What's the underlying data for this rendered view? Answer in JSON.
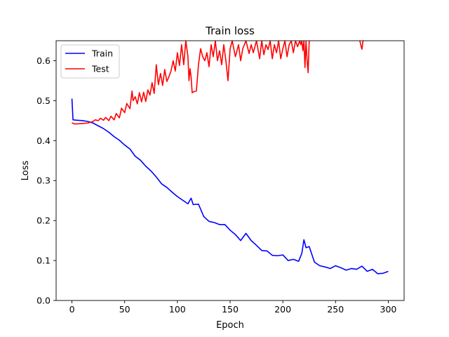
{
  "chart_data": {
    "type": "line",
    "title": "Train loss",
    "xlabel": "Epoch",
    "ylabel": "Loss",
    "xlim": [
      -15,
      315
    ],
    "ylim": [
      0.0,
      0.65
    ],
    "xticks": [
      0,
      50,
      100,
      150,
      200,
      250,
      300
    ],
    "yticks": [
      0.0,
      0.1,
      0.2,
      0.3,
      0.4,
      0.5,
      0.6
    ],
    "ytick_labels": [
      "0.0",
      "0.1",
      "0.2",
      "0.3",
      "0.4",
      "0.5",
      "0.6"
    ],
    "grid": false,
    "legend_position": "upper left",
    "series": [
      {
        "name": "Train",
        "color": "#0000ff",
        "x": [
          0,
          1,
          5,
          10,
          15,
          20,
          25,
          30,
          35,
          40,
          45,
          50,
          55,
          60,
          65,
          70,
          75,
          80,
          85,
          90,
          95,
          100,
          105,
          110,
          113,
          115,
          120,
          125,
          130,
          135,
          140,
          145,
          150,
          155,
          160,
          165,
          170,
          175,
          180,
          185,
          190,
          195,
          200,
          205,
          210,
          215,
          218,
          220,
          222,
          225,
          230,
          235,
          240,
          245,
          250,
          255,
          260,
          265,
          270,
          275,
          280,
          285,
          290,
          295,
          300
        ],
        "y": [
          0.505,
          0.452,
          0.451,
          0.45,
          0.448,
          0.444,
          0.437,
          0.43,
          0.421,
          0.41,
          0.401,
          0.389,
          0.379,
          0.361,
          0.351,
          0.336,
          0.324,
          0.309,
          0.292,
          0.283,
          0.271,
          0.26,
          0.251,
          0.242,
          0.256,
          0.24,
          0.241,
          0.21,
          0.198,
          0.195,
          0.19,
          0.19,
          0.176,
          0.165,
          0.15,
          0.168,
          0.15,
          0.138,
          0.125,
          0.124,
          0.113,
          0.112,
          0.114,
          0.1,
          0.103,
          0.098,
          0.118,
          0.152,
          0.132,
          0.135,
          0.096,
          0.087,
          0.084,
          0.08,
          0.087,
          0.082,
          0.076,
          0.08,
          0.078,
          0.086,
          0.073,
          0.078,
          0.067,
          0.068,
          0.073
        ]
      },
      {
        "name": "Test",
        "color": "#ff0000",
        "x": [
          0,
          2,
          5,
          10,
          15,
          20,
          22,
          25,
          27,
          30,
          32,
          35,
          37,
          40,
          42,
          45,
          47,
          50,
          52,
          55,
          57,
          58,
          60,
          62,
          64,
          66,
          68,
          70,
          72,
          74,
          76,
          78,
          80,
          82,
          84,
          86,
          88,
          90,
          92,
          94,
          96,
          98,
          100,
          102,
          104,
          106,
          108,
          110,
          111,
          112,
          113,
          114,
          116,
          118,
          120,
          122,
          124,
          126,
          128,
          130,
          132,
          134,
          136,
          138,
          140,
          142,
          144,
          146,
          148,
          150,
          152,
          155,
          158,
          160,
          162,
          165,
          168,
          170,
          172,
          175,
          178,
          180,
          182,
          184,
          186,
          188,
          190,
          192,
          194,
          196,
          198,
          200,
          202,
          204,
          206,
          208,
          210,
          212,
          214,
          216,
          217,
          218,
          219,
          220,
          221,
          222,
          223,
          224,
          225
        ],
        "y": [
          0.445,
          0.442,
          0.442,
          0.443,
          0.444,
          0.448,
          0.452,
          0.45,
          0.456,
          0.451,
          0.458,
          0.45,
          0.461,
          0.452,
          0.468,
          0.457,
          0.481,
          0.47,
          0.493,
          0.48,
          0.524,
          0.5,
          0.51,
          0.492,
          0.52,
          0.497,
          0.521,
          0.498,
          0.527,
          0.514,
          0.545,
          0.518,
          0.59,
          0.54,
          0.568,
          0.538,
          0.578,
          0.548,
          0.56,
          0.575,
          0.6,
          0.574,
          0.62,
          0.588,
          0.64,
          0.59,
          0.65,
          0.61,
          0.55,
          0.58,
          0.56,
          0.52,
          0.523,
          0.524,
          0.59,
          0.63,
          0.61,
          0.6,
          0.62,
          0.585,
          0.64,
          0.61,
          0.65,
          0.6,
          0.625,
          0.59,
          0.64,
          0.6,
          0.55,
          0.63,
          0.65,
          0.61,
          0.64,
          0.6,
          0.63,
          0.65,
          0.618,
          0.64,
          0.62,
          0.65,
          0.605,
          0.65,
          0.615,
          0.64,
          0.628,
          0.65,
          0.605,
          0.64,
          0.62,
          0.65,
          0.605,
          0.63,
          0.65,
          0.61,
          0.64,
          0.65,
          0.62,
          0.65,
          0.635,
          0.65,
          0.64,
          0.65,
          0.625,
          0.65,
          0.583,
          0.65,
          0.6,
          0.57,
          0.65
        ]
      }
    ],
    "extra_segments": [
      {
        "series": "Test",
        "x": [
          273,
          275,
          276,
          277
        ],
        "y": [
          0.65,
          0.628,
          0.65,
          0.65
        ]
      }
    ]
  }
}
